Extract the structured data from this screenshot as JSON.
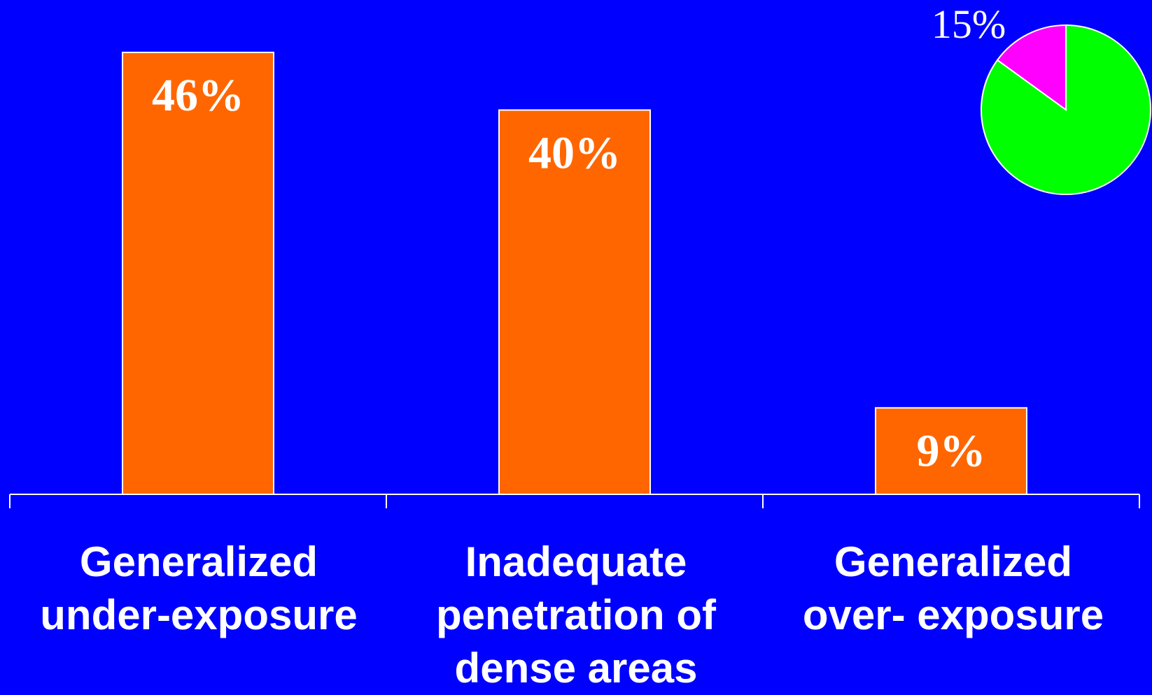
{
  "chart_data": [
    {
      "type": "bar",
      "categories": [
        "Generalized\nunder-exposure",
        "Inadequate\npenetration of\ndense areas",
        "Generalized\nover- exposure"
      ],
      "values": [
        46,
        40,
        9
      ],
      "data_labels": [
        "46%",
        "40%",
        "9%"
      ],
      "ylim": [
        0,
        50
      ],
      "grid": false,
      "bar_color": "#FF6600"
    },
    {
      "type": "pie",
      "values": [
        85,
        15
      ],
      "data_labels": [
        "",
        "15%"
      ],
      "colors": [
        "#00FF00",
        "#FF00FF"
      ]
    }
  ],
  "colors": {
    "background": "#0000FF",
    "axis": "#FFFFFF",
    "text": "#FFFFFF"
  }
}
